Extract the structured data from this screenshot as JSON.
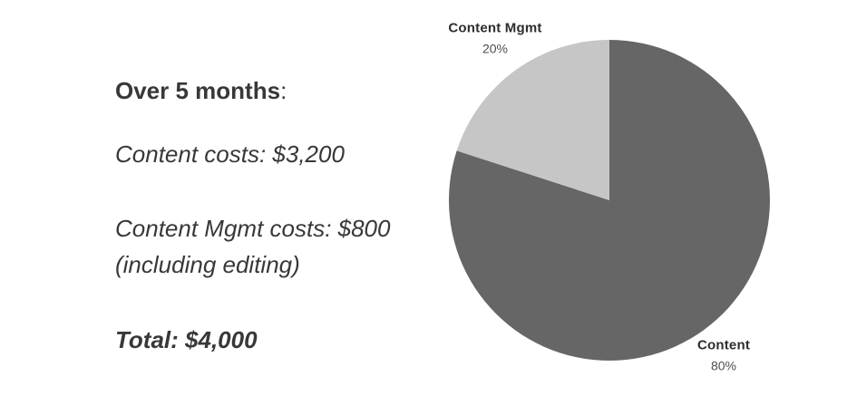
{
  "text_block": {
    "heading_bold": "Over 5 months",
    "heading_colon": ":",
    "content_costs": "Content costs: $3,200",
    "mgmt_costs": "Content Mgmt costs: $800",
    "mgmt_costs_note": "(including editing)",
    "total": "Total: $4,000"
  },
  "chart_data": {
    "type": "pie",
    "title": "",
    "start_angle_deg_from_top": 0,
    "direction": "clockwise",
    "legend_position": "none",
    "labels_position": "outside",
    "series": [
      {
        "name": "Content",
        "value": 80,
        "pct_label": "80%",
        "color": "#666666"
      },
      {
        "name": "Content Mgmt",
        "value": 20,
        "pct_label": "20%",
        "color": "#c6c6c6"
      }
    ]
  },
  "colors": {
    "background": "#ffffff",
    "body_text": "#383838",
    "label_text": "#2d2d2d",
    "pct_text": "#4d4d4d"
  }
}
